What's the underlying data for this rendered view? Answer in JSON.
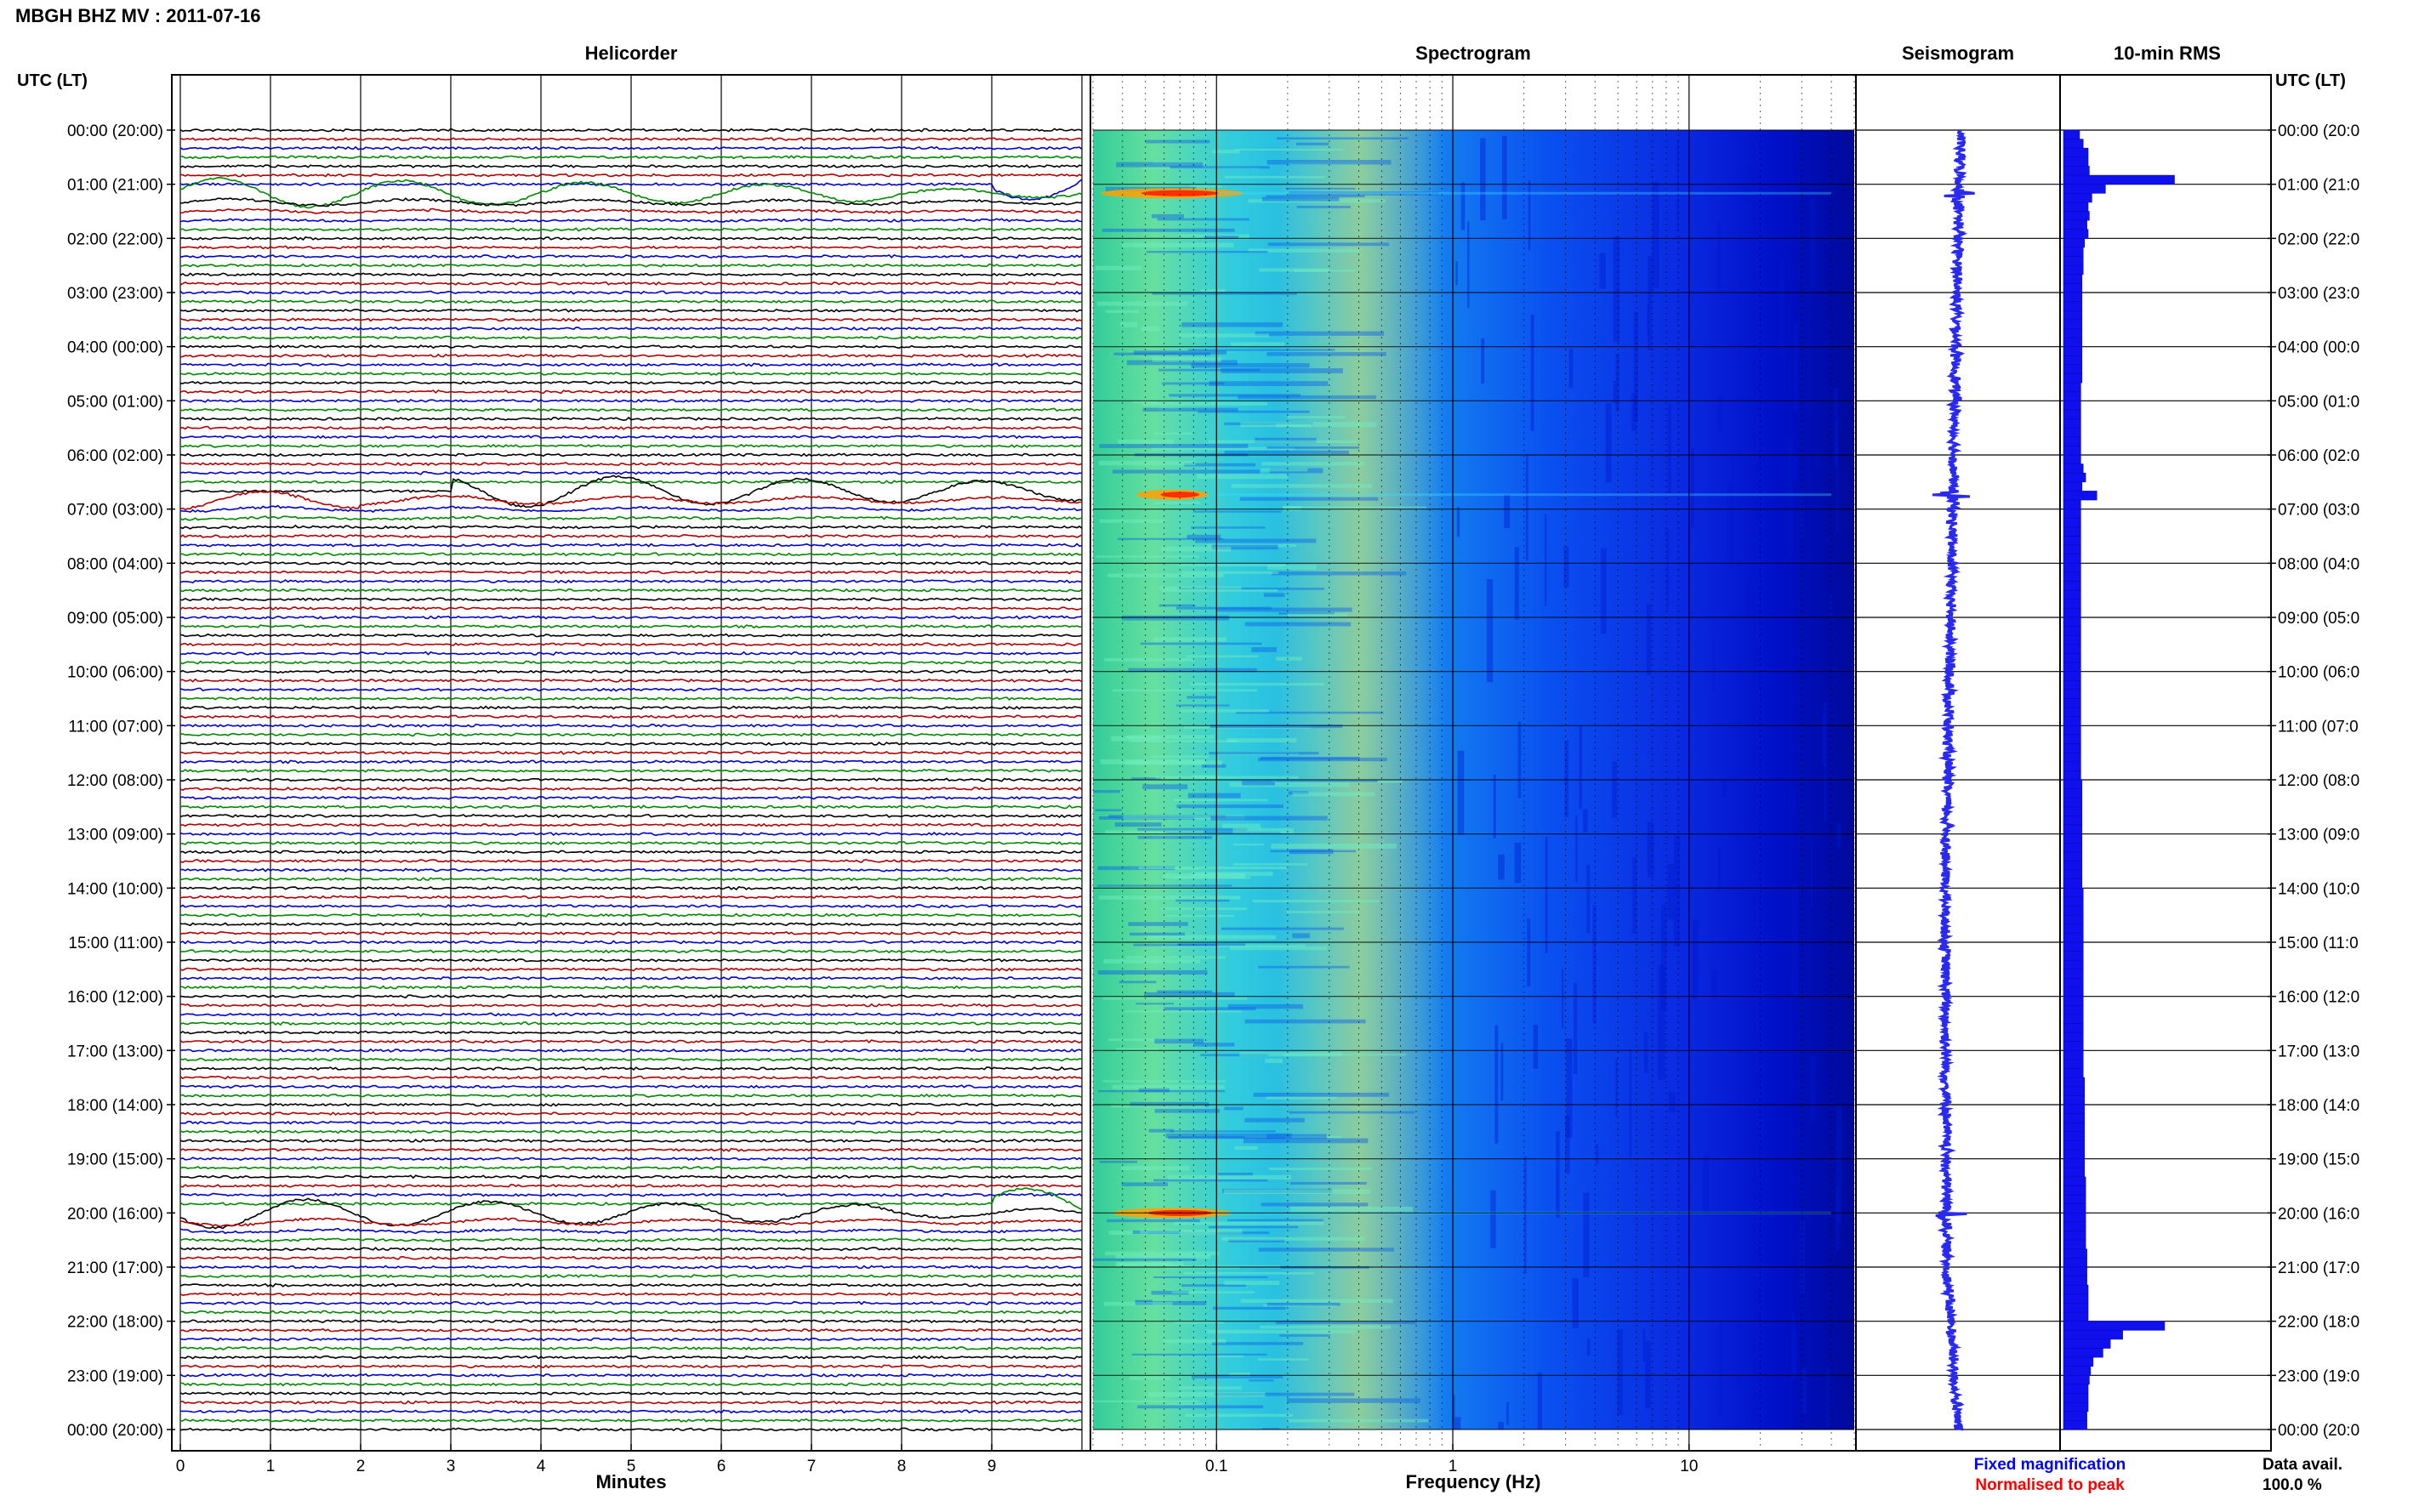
{
  "header": {
    "station": "MBGH BHZ MV : 2011-07-16",
    "utc_label": "UTC (LT)",
    "utc_label_right": "UTC (LT)"
  },
  "panels": {
    "helicorder": "Helicorder",
    "spectrogram": "Spectrogram",
    "seismogram": "Seismogram",
    "rms": "10-min RMS"
  },
  "time_labels": [
    "00:00 (20:00)",
    "01:00 (21:00)",
    "02:00 (22:00)",
    "03:00 (23:00)",
    "04:00 (00:00)",
    "05:00 (01:00)",
    "06:00 (02:00)",
    "07:00 (03:00)",
    "08:00 (04:00)",
    "09:00 (05:00)",
    "10:00 (06:00)",
    "11:00 (07:00)",
    "12:00 (08:00)",
    "13:00 (09:00)",
    "14:00 (10:00)",
    "15:00 (11:00)",
    "16:00 (12:00)",
    "17:00 (13:00)",
    "18:00 (14:00)",
    "19:00 (15:00)",
    "20:00 (16:00)",
    "21:00 (17:00)",
    "22:00 (18:00)",
    "23:00 (19:00)",
    "00:00 (20:00)"
  ],
  "right_time_labels": [
    "00:00 (20:0",
    "01:00 (21:0",
    "02:00 (22:0",
    "03:00 (23:0",
    "04:00 (00:0",
    "05:00 (01:0",
    "06:00 (02:0",
    "07:00 (03:0",
    "08:00 (04:0",
    "09:00 (05:0",
    "10:00 (06:0",
    "11:00 (07:0",
    "12:00 (08:0",
    "13:00 (09:0",
    "14:00 (10:0",
    "15:00 (11:0",
    "16:00 (12:0",
    "17:00 (13:0",
    "18:00 (14:0",
    "19:00 (15:0",
    "20:00 (16:0",
    "21:00 (17:0",
    "22:00 (18:0",
    "23:00 (19:0",
    "00:00 (20:0"
  ],
  "helicorder_axis": {
    "ticks": [
      "0",
      "1",
      "2",
      "3",
      "4",
      "5",
      "6",
      "7",
      "8",
      "9"
    ],
    "label": "Minutes"
  },
  "spectrogram_axis": {
    "ticks": [
      "0.1",
      "1",
      "10"
    ],
    "label": "Frequency (Hz)"
  },
  "legend": {
    "fixed": "Fixed magnification",
    "normalised": "Normalised to peak",
    "fixed_color": "#0000ff",
    "normalised_color": "#ff0000"
  },
  "data_avail": {
    "label": "Data avail.",
    "value": "100.0 %"
  },
  "colors": {
    "trace_cycle": [
      "#000000",
      "#b00000",
      "#0000cc",
      "#008800"
    ],
    "seismogram": "#2a2aee",
    "rms_bar": "#1010ee",
    "spectrogram_scale": [
      "#00008b",
      "#0000ff",
      "#0080ff",
      "#00ffff",
      "#80ff80",
      "#ffff00",
      "#ff8000",
      "#ff0000"
    ]
  },
  "chart_data": {
    "type": "heatmap",
    "x_axis_spectrogram": {
      "scale": "log",
      "range_hz": [
        0.03,
        50
      ]
    },
    "x_axis_helicorder": {
      "range_minutes": [
        0,
        10
      ]
    },
    "time_range_hours": [
      0,
      24
    ],
    "rms_10min": [
      0.13,
      0.16,
      0.2,
      0.2,
      0.21,
      0.9,
      0.34,
      0.23,
      0.2,
      0.21,
      0.19,
      0.2,
      0.17,
      0.16,
      0.16,
      0.16,
      0.15,
      0.15,
      0.15,
      0.15,
      0.15,
      0.15,
      0.15,
      0.15,
      0.15,
      0.15,
      0.15,
      0.15,
      0.14,
      0.14,
      0.14,
      0.14,
      0.14,
      0.14,
      0.14,
      0.14,
      0.14,
      0.16,
      0.18,
      0.15,
      0.27,
      0.14,
      0.14,
      0.14,
      0.14,
      0.14,
      0.14,
      0.14,
      0.14,
      0.14,
      0.14,
      0.14,
      0.14,
      0.14,
      0.14,
      0.14,
      0.14,
      0.14,
      0.14,
      0.14,
      0.14,
      0.14,
      0.14,
      0.14,
      0.14,
      0.14,
      0.14,
      0.14,
      0.14,
      0.14,
      0.14,
      0.14,
      0.15,
      0.15,
      0.15,
      0.15,
      0.15,
      0.15,
      0.15,
      0.15,
      0.15,
      0.15,
      0.15,
      0.15,
      0.16,
      0.16,
      0.16,
      0.16,
      0.16,
      0.16,
      0.16,
      0.16,
      0.16,
      0.16,
      0.16,
      0.16,
      0.16,
      0.16,
      0.16,
      0.16,
      0.16,
      0.16,
      0.16,
      0.16,
      0.16,
      0.17,
      0.17,
      0.17,
      0.17,
      0.17,
      0.17,
      0.17,
      0.17,
      0.17,
      0.17,
      0.17,
      0.18,
      0.18,
      0.18,
      0.18,
      0.18,
      0.18,
      0.18,
      0.18,
      0.19,
      0.19,
      0.19,
      0.19,
      0.2,
      0.2,
      0.2,
      0.2,
      0.82,
      0.48,
      0.38,
      0.32,
      0.24,
      0.22,
      0.21,
      0.2,
      0.2,
      0.2,
      0.19,
      0.19
    ],
    "events_minutes_of_day": [
      {
        "t": 70,
        "label": "event"
      },
      {
        "t": 404,
        "label": "event"
      },
      {
        "t": 1200,
        "label": "event"
      }
    ]
  }
}
